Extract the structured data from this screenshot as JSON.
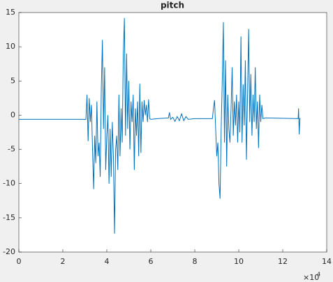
{
  "chart_data": {
    "type": "line",
    "title": "pitch",
    "x": [
      0,
      3.05,
      3.1,
      3.15,
      3.2,
      3.25,
      3.3,
      3.35,
      3.4,
      3.45,
      3.5,
      3.55,
      3.6,
      3.65,
      3.7,
      3.75,
      3.8,
      3.85,
      3.9,
      3.95,
      4.0,
      4.05,
      4.1,
      4.15,
      4.2,
      4.25,
      4.3,
      4.35,
      4.4,
      4.45,
      4.5,
      4.55,
      4.6,
      4.65,
      4.7,
      4.75,
      4.8,
      4.85,
      4.9,
      4.95,
      5.0,
      5.05,
      5.1,
      5.15,
      5.2,
      5.25,
      5.3,
      5.35,
      5.4,
      5.45,
      5.5,
      5.55,
      5.6,
      5.65,
      5.7,
      5.75,
      5.8,
      5.85,
      5.9,
      5.95,
      6.0,
      6.3,
      6.8,
      6.85,
      6.9,
      7.0,
      7.1,
      7.2,
      7.3,
      7.4,
      7.5,
      7.6,
      7.7,
      8.0,
      8.8,
      8.85,
      8.9,
      8.95,
      9.0,
      9.05,
      9.1,
      9.15,
      9.2,
      9.25,
      9.3,
      9.35,
      9.4,
      9.45,
      9.5,
      9.55,
      9.6,
      9.65,
      9.7,
      9.75,
      9.8,
      9.85,
      9.9,
      9.95,
      10.0,
      10.05,
      10.1,
      10.15,
      10.2,
      10.25,
      10.3,
      10.35,
      10.4,
      10.45,
      10.5,
      10.55,
      10.6,
      10.65,
      10.7,
      10.75,
      10.8,
      10.85,
      10.9,
      10.95,
      11.0,
      11.05,
      11.1,
      11.2,
      12.7,
      12.72,
      12.75,
      12.78,
      12.8
    ],
    "series": [
      {
        "name": "pitch",
        "color": "#0072bd",
        "values": [
          -0.6,
          -0.6,
          3,
          -3.8,
          2.5,
          -1,
          1.5,
          -5,
          -10.8,
          -3,
          -7,
          2,
          -6,
          -4,
          -9,
          4,
          11,
          -2,
          7,
          -8,
          -3,
          0,
          -10,
          -2,
          -9,
          -1,
          -6,
          -17.3,
          -5,
          -3,
          -8,
          3,
          -6,
          1,
          -4,
          9,
          14.2,
          -3,
          9,
          -2,
          5,
          -5,
          2,
          -1,
          3,
          -8,
          1,
          -3,
          2,
          -6,
          4.6,
          -5.5,
          2,
          -1,
          2.2,
          0,
          1.5,
          -1,
          2.3,
          -0.5,
          -0.6,
          -0.5,
          -0.4,
          0.4,
          -0.6,
          -0.3,
          -0.9,
          -0.2,
          -0.8,
          0.2,
          -0.8,
          -0.2,
          -0.6,
          -0.5,
          -0.5,
          1,
          2.2,
          -2,
          -6,
          -4,
          -10,
          -12.2,
          -2,
          5,
          13.6,
          -4,
          8,
          -7.5,
          3,
          -2,
          -4,
          1,
          7,
          -3,
          2,
          -1.5,
          3,
          -4,
          2,
          -2.5,
          11.5,
          -4,
          4.5,
          -1.5,
          8,
          -6.5,
          3,
          12.6,
          -1,
          6,
          -3,
          3,
          -1,
          7,
          -2,
          2,
          -4.8,
          3,
          -1,
          1.5,
          -0.5,
          -0.4,
          -0.5,
          1,
          -2.8,
          -0.5,
          -0.6
        ]
      }
    ],
    "xlim": [
      0,
      14
    ],
    "xticks": [
      0,
      2,
      4,
      6,
      8,
      10,
      12,
      14
    ],
    "ylim": [
      -20,
      15
    ],
    "yticks": [
      -20,
      -15,
      -10,
      -5,
      0,
      5,
      10,
      15
    ],
    "x_multiplier": {
      "base": "×10",
      "exponent": "4"
    }
  }
}
